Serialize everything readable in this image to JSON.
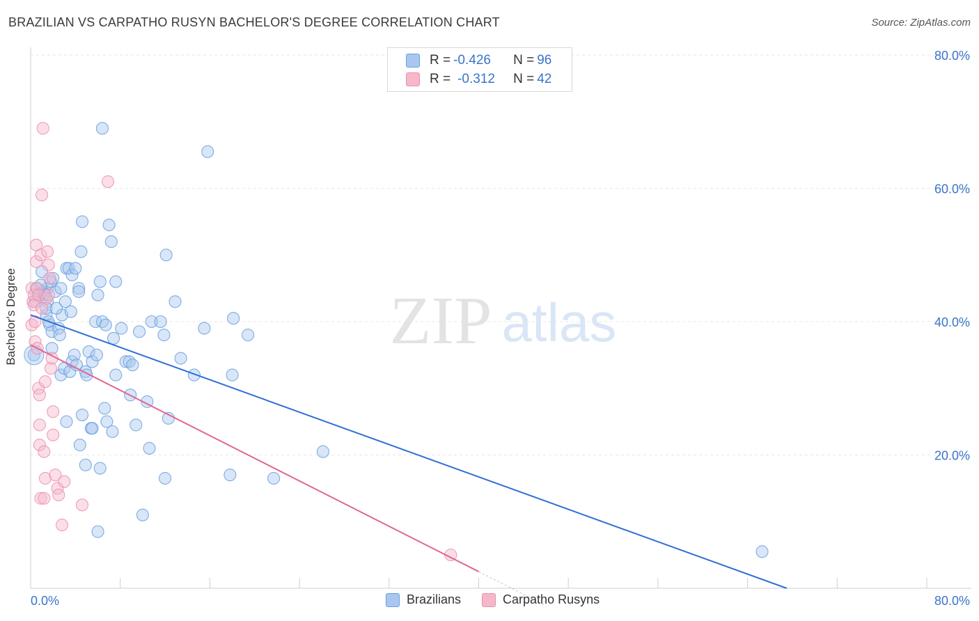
{
  "title": "BRAZILIAN VS CARPATHO RUSYN BACHELOR'S DEGREE CORRELATION CHART",
  "source": "Source: ZipAtlas.com",
  "watermark": {
    "zip": "ZIP",
    "atlas": "atlas"
  },
  "legend_top": {
    "rows": [
      {
        "r_label": "R = ",
        "r_value": "-0.426",
        "n_label": "N = ",
        "n_value": "96",
        "color": "#a9c7ee"
      },
      {
        "r_label": "R = ",
        "r_value": "-0.312",
        "n_label": "N = ",
        "n_value": "42",
        "color": "#f5b8cb"
      }
    ]
  },
  "legend_bottom": [
    {
      "label": "Brazilians",
      "color": "#a9c7ee"
    },
    {
      "label": "Carpatho Rusyns",
      "color": "#f5b8cb"
    }
  ],
  "chart_data": {
    "type": "scatter",
    "title": "BRAZILIAN VS CARPATHO RUSYN BACHELOR'S DEGREE CORRELATION CHART",
    "xlabel": "",
    "ylabel": "Bachelor's Degree",
    "xlim": [
      0,
      80
    ],
    "ylim": [
      0,
      80
    ],
    "x_tick_labels": [
      "0.0%",
      "80.0%"
    ],
    "y_ticks": [
      20,
      40,
      60,
      80
    ],
    "y_tick_labels": [
      "20.0%",
      "40.0%",
      "60.0%",
      "80.0%"
    ],
    "series": [
      {
        "name": "Brazilians",
        "color": "#6a9fe0",
        "fill": "#a9c7ee",
        "trend": {
          "x0": 0,
          "y0": 41,
          "x1": 67.5,
          "y1": 0,
          "color": "#2f6fd6"
        },
        "points": [
          [
            0.3,
            35
          ],
          [
            0.5,
            45
          ],
          [
            0.8,
            44
          ],
          [
            1.0,
            47.5
          ],
          [
            1.1,
            44.5
          ],
          [
            1.3,
            44
          ],
          [
            1.5,
            45
          ],
          [
            1.4,
            41
          ],
          [
            1.5,
            43
          ],
          [
            1.4,
            42
          ],
          [
            1.7,
            39.5
          ],
          [
            1.9,
            38.5
          ],
          [
            1.9,
            36
          ],
          [
            2.2,
            44.5
          ],
          [
            2.5,
            39
          ],
          [
            2.6,
            38
          ],
          [
            2.8,
            41
          ],
          [
            2.7,
            45
          ],
          [
            2.7,
            32
          ],
          [
            3.0,
            33
          ],
          [
            3.1,
            43
          ],
          [
            3.2,
            25
          ],
          [
            3.2,
            48
          ],
          [
            3.4,
            48
          ],
          [
            3.5,
            32.5
          ],
          [
            3.7,
            47
          ],
          [
            3.7,
            34
          ],
          [
            3.9,
            35
          ],
          [
            4.1,
            33.5
          ],
          [
            4.0,
            48
          ],
          [
            4.3,
            45
          ],
          [
            4.3,
            44.5
          ],
          [
            4.4,
            21.5
          ],
          [
            4.5,
            50.5
          ],
          [
            4.6,
            55
          ],
          [
            4.6,
            26
          ],
          [
            4.9,
            32.5
          ],
          [
            4.9,
            18.5
          ],
          [
            5.0,
            32
          ],
          [
            5.2,
            35.5
          ],
          [
            5.4,
            24
          ],
          [
            5.5,
            24
          ],
          [
            5.5,
            34
          ],
          [
            5.8,
            40
          ],
          [
            5.9,
            35
          ],
          [
            6.0,
            44
          ],
          [
            6.0,
            8.5
          ],
          [
            6.2,
            18
          ],
          [
            6.4,
            69
          ],
          [
            6.4,
            40
          ],
          [
            6.6,
            27
          ],
          [
            6.7,
            39.5
          ],
          [
            6.8,
            25
          ],
          [
            7.0,
            54.5
          ],
          [
            7.2,
            52
          ],
          [
            7.3,
            23.5
          ],
          [
            7.4,
            37.5
          ],
          [
            7.6,
            46
          ],
          [
            7.6,
            32
          ],
          [
            8.1,
            39
          ],
          [
            8.5,
            34
          ],
          [
            8.8,
            34
          ],
          [
            8.9,
            29
          ],
          [
            9.1,
            33.5
          ],
          [
            9.4,
            24.5
          ],
          [
            9.7,
            38.5
          ],
          [
            10.0,
            11
          ],
          [
            10.4,
            28
          ],
          [
            10.6,
            21
          ],
          [
            10.8,
            40
          ],
          [
            11.6,
            40
          ],
          [
            11.9,
            38
          ],
          [
            12.0,
            16.5
          ],
          [
            12.1,
            50
          ],
          [
            12.3,
            25.5
          ],
          [
            12.9,
            43
          ],
          [
            13.4,
            34.5
          ],
          [
            14.6,
            32
          ],
          [
            15.5,
            39
          ],
          [
            15.8,
            65.5
          ],
          [
            17.8,
            17
          ],
          [
            18.0,
            32
          ],
          [
            18.1,
            40.5
          ],
          [
            19.4,
            38
          ],
          [
            21.7,
            16.5
          ],
          [
            26.1,
            20.5
          ],
          [
            65.3,
            5.5
          ],
          [
            0.4,
            43
          ],
          [
            1.8,
            46
          ],
          [
            2.3,
            42
          ],
          [
            1.2,
            44.2
          ],
          [
            3.6,
            41.5
          ],
          [
            2.0,
            46.5
          ],
          [
            6.2,
            46
          ],
          [
            0.9,
            45.5
          ],
          [
            1.6,
            40
          ]
        ]
      },
      {
        "name": "Carpatho Rusyns",
        "color": "#ee8eab",
        "fill": "#f5b8cb",
        "trend": {
          "x0": 0,
          "y0": 36.5,
          "x1": 40,
          "y1": 2.5,
          "color": "#e06694",
          "dash_to_x": 46
        },
        "points": [
          [
            0.1,
            45
          ],
          [
            0.1,
            39.5
          ],
          [
            0.2,
            43
          ],
          [
            0.3,
            44
          ],
          [
            0.3,
            42.5
          ],
          [
            0.4,
            40
          ],
          [
            0.4,
            37
          ],
          [
            0.5,
            51.5
          ],
          [
            0.5,
            49
          ],
          [
            0.6,
            45
          ],
          [
            0.7,
            44
          ],
          [
            0.7,
            30
          ],
          [
            0.8,
            29
          ],
          [
            0.8,
            24.5
          ],
          [
            0.8,
            21.5
          ],
          [
            0.9,
            13.5
          ],
          [
            0.9,
            50
          ],
          [
            1.0,
            59
          ],
          [
            1.1,
            69
          ],
          [
            1.2,
            13.5
          ],
          [
            1.2,
            20.5
          ],
          [
            1.3,
            31
          ],
          [
            1.3,
            16.5
          ],
          [
            1.4,
            43.5
          ],
          [
            1.5,
            50.5
          ],
          [
            1.6,
            44
          ],
          [
            1.6,
            48.5
          ],
          [
            1.7,
            46.5
          ],
          [
            1.8,
            33
          ],
          [
            1.9,
            34.5
          ],
          [
            2.0,
            26.5
          ],
          [
            2.0,
            23
          ],
          [
            2.2,
            17
          ],
          [
            2.4,
            15
          ],
          [
            2.5,
            14
          ],
          [
            2.8,
            9.5
          ],
          [
            3.0,
            16
          ],
          [
            4.6,
            12.5
          ],
          [
            6.9,
            61
          ],
          [
            37.5,
            5
          ],
          [
            1.0,
            42
          ],
          [
            0.6,
            36
          ]
        ]
      }
    ]
  }
}
